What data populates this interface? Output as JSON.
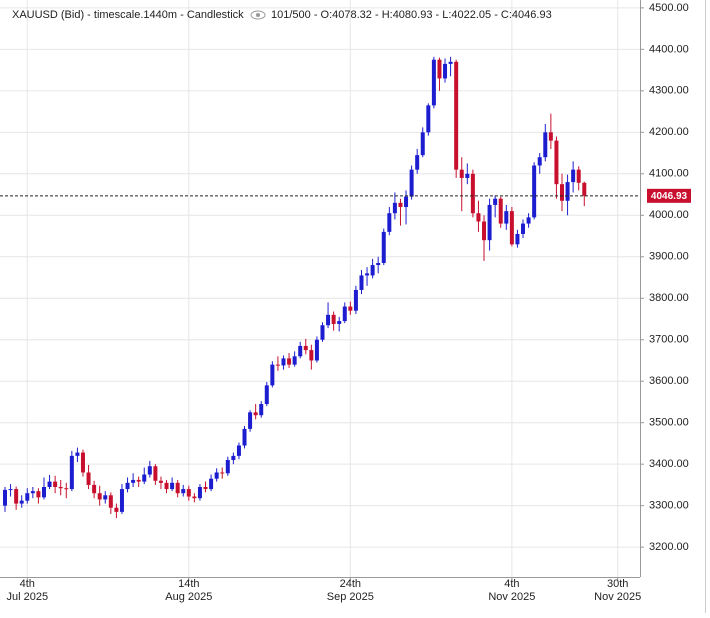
{
  "chart_data": {
    "type": "candlestick",
    "title": "XAUUSD (Bid) - timescale.1440m - Candlestick",
    "status": "101/500 - O:4078.32 - H:4080.93 - L:4022.05 - C:4046.93",
    "up_color": "#1d1dd0",
    "down_color": "#c8102e",
    "grid": true,
    "last_price": 4046.93,
    "ylim": [
      3128,
      4519
    ],
    "yticks": [
      {
        "value": 3200,
        "label": "3200.00"
      },
      {
        "value": 3300,
        "label": "3300.00"
      },
      {
        "value": 3400,
        "label": "3400.00"
      },
      {
        "value": 3500,
        "label": "3500.00"
      },
      {
        "value": 3600,
        "label": "3600.00"
      },
      {
        "value": 3700,
        "label": "3700.00"
      },
      {
        "value": 3800,
        "label": "3800.00"
      },
      {
        "value": 3900,
        "label": "3900.00"
      },
      {
        "value": 4000,
        "label": "4000.00"
      },
      {
        "value": 4100,
        "label": "4100.00"
      },
      {
        "value": 4200,
        "label": "4200.00"
      },
      {
        "value": 4300,
        "label": "4300.00"
      },
      {
        "value": 4400,
        "label": "4400.00"
      },
      {
        "value": 4500,
        "label": "4500.00"
      }
    ],
    "xticks": [
      {
        "value": "2025-07-04",
        "label": "4th",
        "sublabel": "Jul 2025"
      },
      {
        "value": "2025-08-14",
        "label": "14th",
        "sublabel": "Aug 2025"
      },
      {
        "value": "2025-09-24",
        "label": "24th",
        "sublabel": "Sep 2025"
      },
      {
        "value": "2025-11-04",
        "label": "4th",
        "sublabel": "Nov 2025"
      },
      {
        "value": "2025-11-30",
        "label": "30th",
        "sublabel": "Nov 2025"
      }
    ],
    "x": [
      "2025-06-30",
      "2025-07-01",
      "2025-07-02",
      "2025-07-03",
      "2025-07-04",
      "2025-07-07",
      "2025-07-08",
      "2025-07-09",
      "2025-07-10",
      "2025-07-11",
      "2025-07-14",
      "2025-07-15",
      "2025-07-16",
      "2025-07-17",
      "2025-07-18",
      "2025-07-21",
      "2025-07-22",
      "2025-07-23",
      "2025-07-24",
      "2025-07-25",
      "2025-07-28",
      "2025-07-29",
      "2025-07-30",
      "2025-07-31",
      "2025-08-01",
      "2025-08-04",
      "2025-08-05",
      "2025-08-06",
      "2025-08-07",
      "2025-08-08",
      "2025-08-11",
      "2025-08-12",
      "2025-08-13",
      "2025-08-14",
      "2025-08-15",
      "2025-08-18",
      "2025-08-19",
      "2025-08-20",
      "2025-08-21",
      "2025-08-22",
      "2025-08-25",
      "2025-08-26",
      "2025-08-27",
      "2025-08-28",
      "2025-08-29",
      "2025-09-01",
      "2025-09-02",
      "2025-09-03",
      "2025-09-04",
      "2025-09-05",
      "2025-09-08",
      "2025-09-09",
      "2025-09-10",
      "2025-09-11",
      "2025-09-12",
      "2025-09-15",
      "2025-09-16",
      "2025-09-17",
      "2025-09-18",
      "2025-09-19",
      "2025-09-22",
      "2025-09-23",
      "2025-09-24",
      "2025-09-25",
      "2025-09-26",
      "2025-09-29",
      "2025-09-30",
      "2025-10-01",
      "2025-10-02",
      "2025-10-03",
      "2025-10-06",
      "2025-10-07",
      "2025-10-08",
      "2025-10-09",
      "2025-10-10",
      "2025-10-13",
      "2025-10-14",
      "2025-10-15",
      "2025-10-16",
      "2025-10-17",
      "2025-10-20",
      "2025-10-21",
      "2025-10-22",
      "2025-10-23",
      "2025-10-24",
      "2025-10-27",
      "2025-10-28",
      "2025-10-29",
      "2025-10-30",
      "2025-10-31",
      "2025-11-03",
      "2025-11-04",
      "2025-11-05",
      "2025-11-06",
      "2025-11-07",
      "2025-11-10",
      "2025-11-11",
      "2025-11-12",
      "2025-11-13",
      "2025-11-14",
      "2025-11-17",
      "2025-11-18",
      "2025-11-19",
      "2025-11-20",
      "2025-11-21"
    ],
    "open": [
      3300,
      3338,
      3340,
      3305,
      3312,
      3330,
      3335,
      3320,
      3345,
      3358,
      3345,
      3342,
      3340,
      3420,
      3428,
      3380,
      3350,
      3330,
      3315,
      3325,
      3295,
      3285,
      3340,
      3355,
      3362,
      3358,
      3375,
      3395,
      3360,
      3355,
      3340,
      3355,
      3330,
      3340,
      3322,
      3318,
      3345,
      3340,
      3365,
      3380,
      3378,
      3410,
      3420,
      3445,
      3485,
      3525,
      3518,
      3545,
      3590,
      3640,
      3638,
      3655,
      3640,
      3660,
      3685,
      3675,
      3650,
      3700,
      3735,
      3760,
      3738,
      3745,
      3780,
      3770,
      3820,
      3855,
      3855,
      3880,
      3885,
      3960,
      4005,
      4030,
      4020,
      4045,
      4110,
      4145,
      4200,
      4265,
      4375,
      4330,
      4365,
      4370,
      4110,
      4090,
      4100,
      4005,
      3985,
      3940,
      4025,
      4040,
      3980,
      4010,
      3930,
      3955,
      3980,
      3995,
      4120,
      4140,
      4200,
      4180,
      4075,
      4035,
      4080,
      4110,
      4078.32
    ],
    "high": [
      3345,
      3352,
      3346,
      3325,
      3342,
      3345,
      3342,
      3368,
      3374,
      3372,
      3362,
      3355,
      3432,
      3440,
      3435,
      3398,
      3360,
      3348,
      3335,
      3332,
      3305,
      3352,
      3368,
      3378,
      3370,
      3392,
      3408,
      3400,
      3370,
      3362,
      3368,
      3362,
      3350,
      3348,
      3330,
      3352,
      3358,
      3375,
      3390,
      3392,
      3418,
      3428,
      3452,
      3492,
      3530,
      3545,
      3552,
      3598,
      3648,
      3660,
      3662,
      3668,
      3672,
      3695,
      3702,
      3688,
      3708,
      3742,
      3790,
      3768,
      3755,
      3790,
      3792,
      3830,
      3868,
      3875,
      3895,
      3900,
      3968,
      4020,
      4055,
      4040,
      4060,
      4120,
      4160,
      4212,
      4270,
      4382,
      4380,
      4378,
      4382,
      4375,
      4140,
      4125,
      4110,
      4035,
      4000,
      4040,
      4048,
      4045,
      4025,
      4020,
      3965,
      3990,
      4005,
      4128,
      4150,
      4220,
      4245,
      4190,
      4100,
      4098,
      4130,
      4118,
      4080.93
    ],
    "low": [
      3285,
      3322,
      3290,
      3295,
      3305,
      3318,
      3305,
      3315,
      3340,
      3330,
      3325,
      3318,
      3335,
      3405,
      3370,
      3340,
      3318,
      3300,
      3305,
      3280,
      3270,
      3280,
      3332,
      3345,
      3345,
      3352,
      3368,
      3350,
      3340,
      3330,
      3335,
      3320,
      3322,
      3312,
      3308,
      3312,
      3332,
      3335,
      3358,
      3365,
      3372,
      3400,
      3412,
      3438,
      3478,
      3508,
      3512,
      3540,
      3585,
      3625,
      3628,
      3632,
      3635,
      3655,
      3665,
      3628,
      3645,
      3695,
      3728,
      3722,
      3720,
      3740,
      3760,
      3762,
      3810,
      3830,
      3848,
      3860,
      3880,
      3952,
      3990,
      3975,
      3978,
      4038,
      4100,
      4140,
      4192,
      4258,
      4300,
      4320,
      4335,
      4090,
      4010,
      4075,
      3995,
      3960,
      3890,
      3915,
      3995,
      3970,
      3965,
      3925,
      3922,
      3945,
      3970,
      3990,
      4100,
      4130,
      4160,
      4040,
      4010,
      4000,
      4055,
      4060,
      4022.05
    ],
    "close": [
      3338,
      3340,
      3305,
      3312,
      3330,
      3335,
      3320,
      3345,
      3358,
      3345,
      3342,
      3340,
      3420,
      3428,
      3380,
      3350,
      3330,
      3315,
      3325,
      3295,
      3285,
      3340,
      3355,
      3362,
      3358,
      3375,
      3395,
      3360,
      3355,
      3340,
      3355,
      3330,
      3340,
      3322,
      3318,
      3345,
      3340,
      3365,
      3380,
      3378,
      3410,
      3420,
      3445,
      3485,
      3525,
      3518,
      3545,
      3590,
      3640,
      3638,
      3655,
      3640,
      3660,
      3685,
      3675,
      3650,
      3700,
      3735,
      3760,
      3738,
      3745,
      3780,
      3770,
      3820,
      3855,
      3860,
      3880,
      3885,
      3960,
      4005,
      4030,
      4020,
      4045,
      4110,
      4145,
      4200,
      4265,
      4375,
      4330,
      4365,
      4370,
      4110,
      4090,
      4100,
      4005,
      3985,
      3940,
      4025,
      4040,
      3980,
      4010,
      3930,
      3955,
      3980,
      3995,
      4120,
      4140,
      4200,
      4180,
      4075,
      4035,
      4080,
      4110,
      4078.32,
      4046.93
    ]
  }
}
